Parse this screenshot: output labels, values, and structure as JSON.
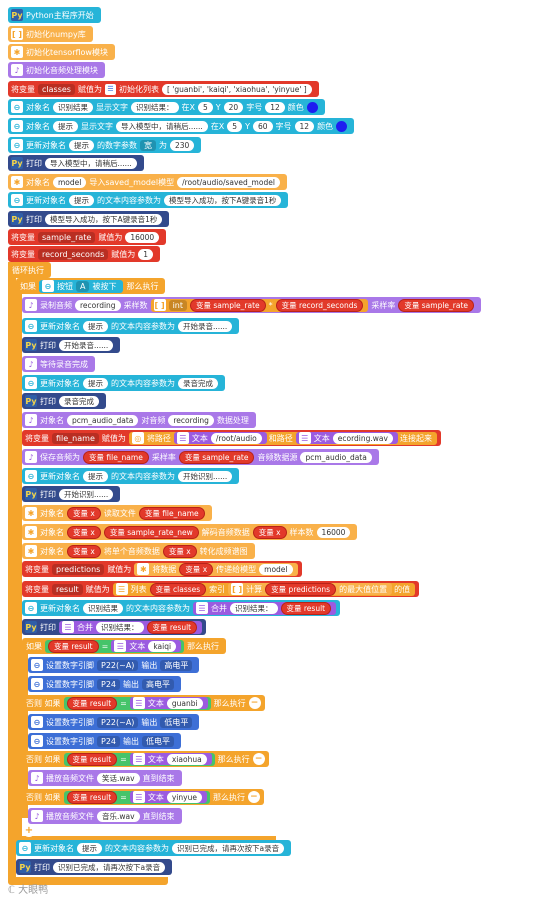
{
  "blocks": {
    "b0": {
      "label": "Python主程序开始"
    },
    "b1": {
      "label": "初始化numpy库"
    },
    "b2": {
      "label": "初始化tensorflow模块"
    },
    "b3": {
      "label": "初始化音频处理模块"
    },
    "b4": {
      "pre": "将变量",
      "var": "classes",
      "mid": "赋值为",
      "fn": "初始化列表",
      "val": "[ 'guanbi', 'kaiqi', 'xiaohua', 'yinyue' ]"
    },
    "b5": {
      "pre": "对象名",
      "obj": "识别结果",
      "t1": "显示文字",
      "txt": "识别结果：",
      "t2": "在X",
      "x": "5",
      "t3": "Y",
      "y": "20",
      "t4": "字号",
      "size": "12",
      "t5": "颜色"
    },
    "b6": {
      "pre": "对象名",
      "obj": "提示",
      "t1": "显示文字",
      "txt": "导入模型中，请稍后......",
      "t2": "在X",
      "x": "5",
      "t3": "Y",
      "y": "60",
      "t4": "字号",
      "size": "12",
      "t5": "颜色"
    },
    "b7": {
      "pre": "更新对象名",
      "obj": "提示",
      "t1": "的数字参数",
      "dd": "宽",
      "t2": "为",
      "val": "230"
    },
    "b8": {
      "pre": "打印",
      "txt": "导入模型中，请稍后......"
    },
    "b9": {
      "pre": "对象名",
      "obj": "model",
      "t1": "导入saved_model模型",
      "val": "/root/audio/saved_model"
    },
    "b10": {
      "pre": "更新对象名",
      "obj": "提示",
      "t1": "的文本内容参数为",
      "txt": "模型导入成功，按下A键录音1秒"
    },
    "b11": {
      "pre": "打印",
      "txt": "模型导入成功，按下A键录音1秒"
    },
    "b12": {
      "pre": "将变量",
      "var": "sample_rate",
      "mid": "赋值为",
      "val": "16000"
    },
    "b13": {
      "pre": "将变量",
      "var": "record_seconds",
      "mid": "赋值为",
      "val": "1"
    },
    "b14": {
      "label": "循环执行"
    },
    "b15": {
      "pre": "如果",
      "t1": "按钮",
      "btn": "A",
      "t2": "被按下",
      "t3": "那么执行"
    },
    "b16": {
      "pre": "录制音频",
      "obj": "recording",
      "t1": "采样数",
      "fn": "int",
      "v1": "变量 sample_rate",
      "op": "*",
      "v2": "变量 record_seconds",
      "t2": "采样率",
      "v3": "变量 sample_rate"
    },
    "b17": {
      "pre": "更新对象名",
      "obj": "提示",
      "t1": "的文本内容参数为",
      "txt": "开始录音......"
    },
    "b18": {
      "pre": "打印",
      "txt": "开始录音......"
    },
    "b19": {
      "label": "等待录音完成"
    },
    "b20": {
      "pre": "更新对象名",
      "obj": "提示",
      "t1": "的文本内容参数为",
      "txt": "录音完成"
    },
    "b21": {
      "pre": "打印",
      "txt": "录音完成"
    },
    "b22": {
      "pre": "对象名",
      "obj": "pcm_audio_data",
      "t1": "对音频",
      "obj2": "recording",
      "t2": "数据处理"
    },
    "b23": {
      "pre": "将变量",
      "var": "file_name",
      "mid": "赋值为",
      "t1": "将路径",
      "s1": "文本",
      "p1": "/root/audio",
      "t2": "和路径",
      "s2": "文本",
      "p2": "ecording.wav",
      "t3": "连接起来"
    },
    "b24": {
      "pre": "保存音频为",
      "v1": "变量 file_name",
      "t1": "采样率",
      "v2": "变量 sample_rate",
      "t2": "音频数据源",
      "obj": "pcm_audio_data"
    },
    "b25": {
      "pre": "更新对象名",
      "obj": "提示",
      "t1": "的文本内容参数为",
      "txt": "开始识别......"
    },
    "b26": {
      "pre": "打印",
      "txt": "开始识别......"
    },
    "b27": {
      "pre": "对象名",
      "v1": "变量 x",
      "t1": "读取文件",
      "v2": "变量 file_name"
    },
    "b28": {
      "pre": "对象名",
      "v1": "变量 x",
      "v2": "变量 sample_rate_new",
      "t1": "解码音频数据",
      "v3": "变量 x",
      "t2": "样本数",
      "val": "16000"
    },
    "b29": {
      "pre": "对象名",
      "v1": "变量 x",
      "t1": "将单个音频数据",
      "v2": "变量 x",
      "t2": "转化成频谱图"
    },
    "b30": {
      "pre": "将变量",
      "var": "predictions",
      "mid": "赋值为",
      "t1": "将数据",
      "v1": "变量 x",
      "t2": "传递给模型",
      "obj": "model"
    },
    "b31": {
      "pre": "将变量",
      "var": "result",
      "mid": "赋值为",
      "t1": "列表",
      "v1": "变量 classes",
      "t2": "索引",
      "t3": "计算",
      "v2": "变量 predictions",
      "t4": "的最大值位置",
      "t5": "的值"
    },
    "b32": {
      "pre": "更新对象名",
      "obj": "识别结果",
      "t1": "的文本内容参数为",
      "t2": "合并",
      "txt": "识别结果：",
      "v1": "变量 result"
    },
    "b33": {
      "pre": "打印",
      "t1": "合并",
      "txt": "识别结果：",
      "v1": "变量 result"
    },
    "b34": {
      "pre": "如果",
      "v1": "变量 result",
      "op": "=",
      "s1": "文本",
      "txt": "kaiqi",
      "t1": "那么执行"
    },
    "b35": {
      "pre": "设置数字引脚",
      "pin": "P22(~A)",
      "t1": "输出",
      "lvl": "高电平"
    },
    "b36": {
      "pre": "设置数字引脚",
      "pin": "P24",
      "t1": "输出",
      "lvl": "高电平"
    },
    "b37": {
      "pre": "否则 如果",
      "v1": "变量 result",
      "op": "=",
      "s1": "文本",
      "txt": "guanbi",
      "t1": "那么执行"
    },
    "b38": {
      "pre": "设置数字引脚",
      "pin": "P22(~A)",
      "t1": "输出",
      "lvl": "低电平"
    },
    "b39": {
      "pre": "设置数字引脚",
      "pin": "P24",
      "t1": "输出",
      "lvl": "低电平"
    },
    "b40": {
      "pre": "否则 如果",
      "v1": "变量 result",
      "op": "=",
      "s1": "文本",
      "txt": "xiaohua",
      "t1": "那么执行"
    },
    "b41": {
      "pre": "播放音频文件",
      "txt": "笑话.wav",
      "t1": "直到结束"
    },
    "b42": {
      "pre": "否则 如果",
      "v1": "变量 result",
      "op": "=",
      "s1": "文本",
      "txt": "yinyue",
      "t1": "那么执行"
    },
    "b43": {
      "pre": "播放音频文件",
      "txt": "音乐.wav",
      "t1": "直到结束"
    },
    "b44": {
      "pre": "更新对象名",
      "obj": "提示",
      "t1": "的文本内容参数为",
      "txt": "识别已完成，请再次按下a录音"
    },
    "b45": {
      "pre": "打印",
      "txt": "识别已完成，请再次按下a录音"
    }
  },
  "watermark": "大眼鸭",
  "colors": {
    "python": "#26b4d8",
    "var": "#e2392a",
    "control": "#f4a42c",
    "pin": "#3d6fd6",
    "audio": "#9b5be0"
  }
}
